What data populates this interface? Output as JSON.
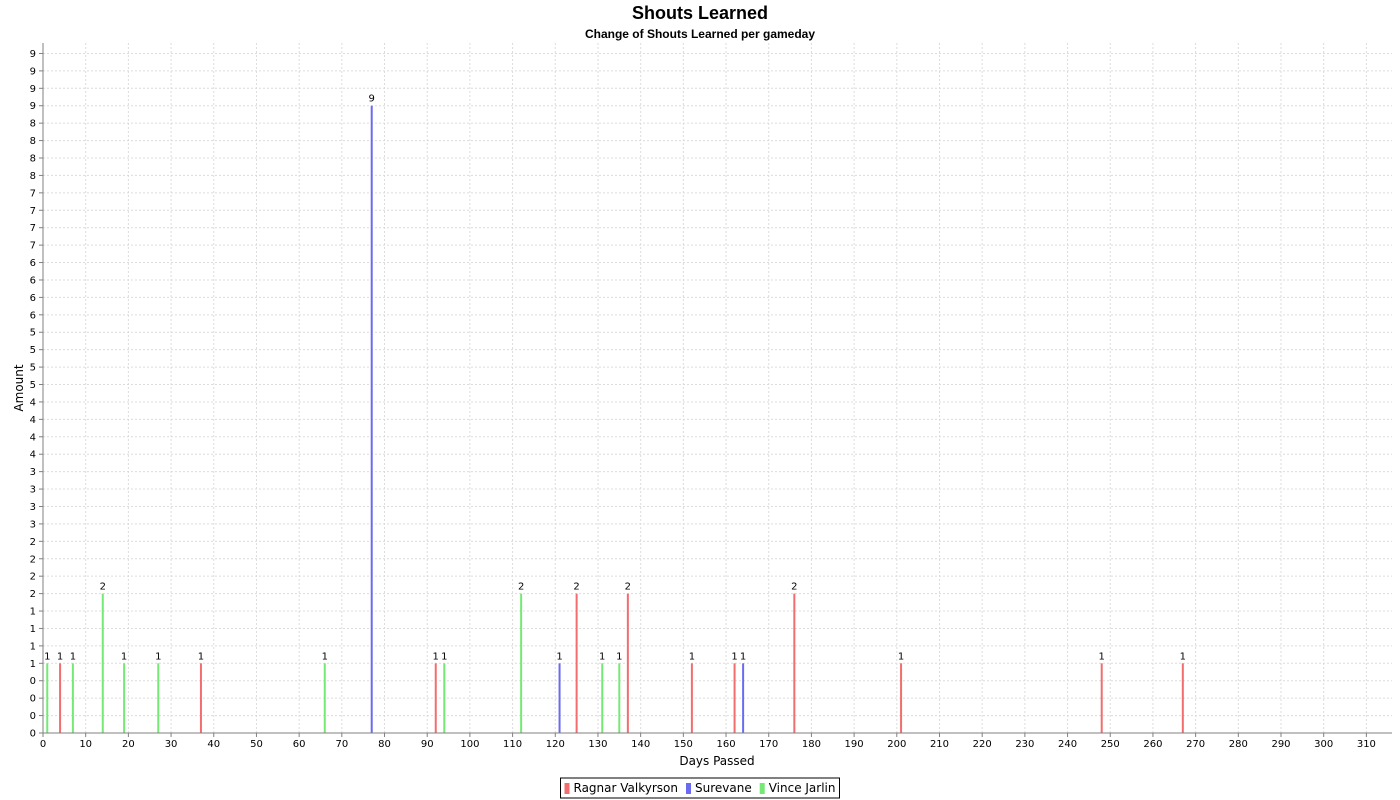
{
  "chart_data": {
    "type": "bar",
    "title": "Shouts Learned",
    "subtitle": "Change of Shouts Learned per gameday",
    "xlabel": "Days Passed",
    "ylabel": "Amount",
    "xlim": [
      0,
      316
    ],
    "ylim": [
      0,
      9.9
    ],
    "x_ticks": [
      0,
      10,
      20,
      30,
      40,
      50,
      60,
      70,
      80,
      90,
      100,
      110,
      120,
      130,
      140,
      150,
      160,
      170,
      180,
      190,
      200,
      210,
      220,
      230,
      240,
      250,
      260,
      270,
      280,
      290,
      300,
      310
    ],
    "y_ticks": [
      0,
      0.25,
      0.5,
      0.75,
      1,
      1.25,
      1.5,
      1.75,
      2,
      2.25,
      2.5,
      2.75,
      3,
      3.25,
      3.5,
      3.75,
      4,
      4.25,
      4.5,
      4.75,
      5,
      5.25,
      5.5,
      5.75,
      6,
      6.25,
      6.5,
      6.75,
      7,
      7.25,
      7.5,
      7.75,
      8,
      8.25,
      8.5,
      8.75,
      9,
      9.25,
      9.5,
      9.75
    ],
    "y_tick_labels": [
      "0",
      "0",
      "0",
      "0",
      "1",
      "1",
      "1",
      "1",
      "2",
      "2",
      "2",
      "2",
      "3",
      "3",
      "3",
      "3",
      "4",
      "4",
      "4",
      "4",
      "5",
      "5",
      "5",
      "5",
      "6",
      "6",
      "6",
      "6",
      "7",
      "7",
      "7",
      "7",
      "8",
      "8",
      "8",
      "8",
      "9",
      "9",
      "9",
      "9"
    ],
    "grid": true,
    "legend_position": "bottom-center",
    "series": [
      {
        "name": "Ragnar Valkyrson",
        "color": "#f26d6d",
        "points": [
          {
            "x": 4,
            "y": 1
          },
          {
            "x": 37,
            "y": 1
          },
          {
            "x": 92,
            "y": 1
          },
          {
            "x": 125,
            "y": 2
          },
          {
            "x": 137,
            "y": 2
          },
          {
            "x": 152,
            "y": 1
          },
          {
            "x": 162,
            "y": 1
          },
          {
            "x": 176,
            "y": 2
          },
          {
            "x": 201,
            "y": 1
          },
          {
            "x": 248,
            "y": 1
          },
          {
            "x": 267,
            "y": 1
          }
        ]
      },
      {
        "name": "Surevane",
        "color": "#6b6bf2",
        "points": [
          {
            "x": 77,
            "y": 9
          },
          {
            "x": 121,
            "y": 1
          },
          {
            "x": 164,
            "y": 1
          }
        ]
      },
      {
        "name": "Vince Jarlin",
        "color": "#74ea74",
        "points": [
          {
            "x": 1,
            "y": 1
          },
          {
            "x": 7,
            "y": 1
          },
          {
            "x": 14,
            "y": 2
          },
          {
            "x": 19,
            "y": 1
          },
          {
            "x": 27,
            "y": 1
          },
          {
            "x": 66,
            "y": 1
          },
          {
            "x": 94,
            "y": 1
          },
          {
            "x": 112,
            "y": 2
          },
          {
            "x": 131,
            "y": 1
          },
          {
            "x": 135,
            "y": 1
          }
        ]
      }
    ]
  }
}
